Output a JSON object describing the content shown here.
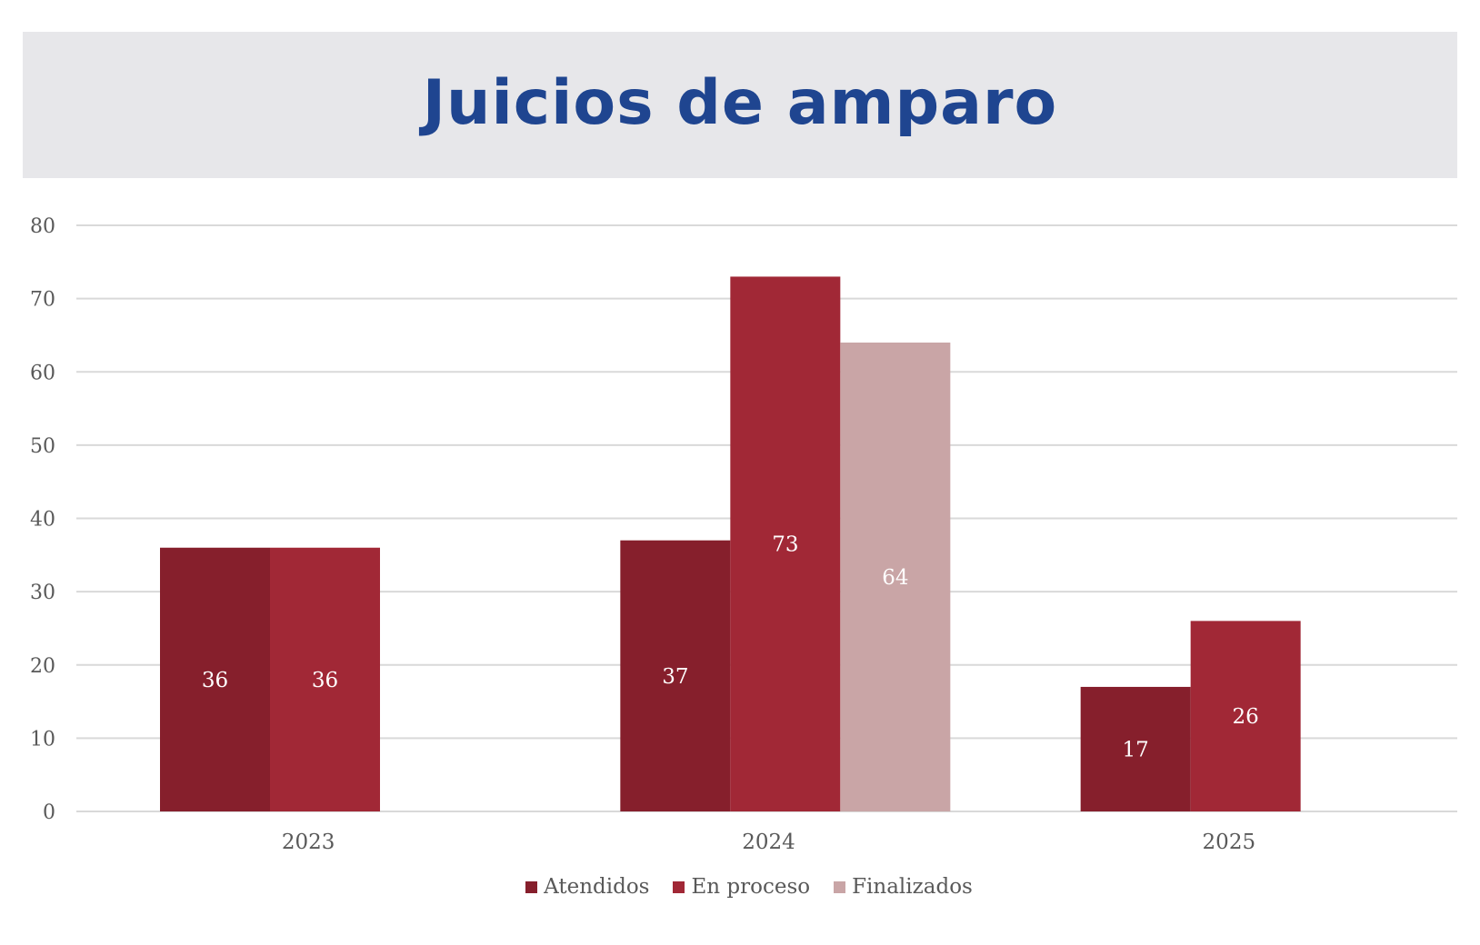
{
  "title": "Juicios de amparo",
  "colors": {
    "title": "#1f4590",
    "band": "#e7e7ea",
    "grid": "#d9d9d9",
    "axis_text": "#595959"
  },
  "chart_data": {
    "type": "bar",
    "title": "Juicios de amparo",
    "categories": [
      "2023",
      "2024",
      "2025"
    ],
    "series": [
      {
        "name": "Atendidos",
        "color": "#861f2c",
        "values": [
          36,
          37,
          17
        ]
      },
      {
        "name": "En proceso",
        "color": "#a12836",
        "values": [
          36,
          73,
          26
        ]
      },
      {
        "name": "Finalizados",
        "color": "#c9a5a6",
        "values": [
          null,
          64,
          null
        ]
      }
    ],
    "ylim": [
      0,
      80
    ],
    "yticks": [
      0,
      10,
      20,
      30,
      40,
      50,
      60,
      70,
      80
    ],
    "xlabel": "",
    "ylabel": "",
    "grid": true,
    "legend": "bottom",
    "data_labels": true
  }
}
